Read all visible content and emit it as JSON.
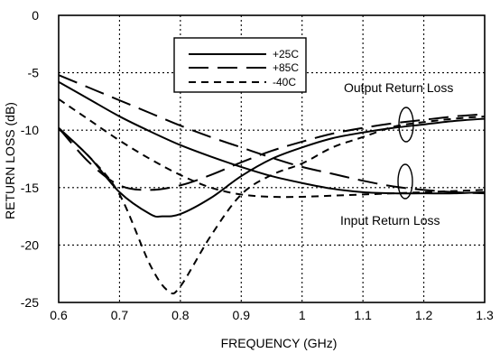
{
  "chart_data": {
    "type": "line",
    "title": "",
    "xlabel": "FREQUENCY (GHz)",
    "ylabel": "RETURN LOSS (dB)",
    "xlim": [
      0.6,
      1.3
    ],
    "ylim": [
      -25,
      0
    ],
    "x_ticks": [
      0.6,
      0.7,
      0.8,
      0.9,
      1,
      1.1,
      1.2,
      1.3
    ],
    "x_tick_labels": [
      "0.6",
      "0.7",
      "0.8",
      "0.9",
      "1",
      "1.1",
      "1.2",
      "1.3"
    ],
    "y_ticks": [
      0,
      -5,
      -10,
      -15,
      -20,
      -25
    ],
    "y_tick_labels": [
      "0",
      "-5",
      "-10",
      "-15",
      "-20",
      "-25"
    ],
    "grid": true,
    "legend_position": "top-center",
    "legend": [
      {
        "label": "+25C",
        "style": "solid"
      },
      {
        "label": "+85C",
        "style": "long-dash"
      },
      {
        "label": "-40C",
        "style": "short-dash"
      }
    ],
    "annotations": [
      "Output Return Loss",
      "Input Return Loss"
    ],
    "series": [
      {
        "name": "+25C",
        "group": "Output Return Loss",
        "style": "solid",
        "x": [
          0.6,
          0.65,
          0.7,
          0.75,
          0.8,
          0.85,
          0.9,
          0.95,
          1.0,
          1.05,
          1.1,
          1.15,
          1.2,
          1.25,
          1.3
        ],
        "y": [
          -5.8,
          -7.3,
          -8.8,
          -10.1,
          -11.3,
          -12.3,
          -13.2,
          -14.0,
          -14.6,
          -15.1,
          -15.4,
          -15.5,
          -15.5,
          -15.5,
          -15.4
        ]
      },
      {
        "name": "+85C",
        "group": "Output Return Loss",
        "style": "long-dash",
        "x": [
          0.6,
          0.65,
          0.7,
          0.75,
          0.8,
          0.85,
          0.9,
          0.95,
          1.0,
          1.05,
          1.1,
          1.15,
          1.2,
          1.25,
          1.3
        ],
        "y": [
          -5.2,
          -6.3,
          -7.4,
          -8.5,
          -9.6,
          -10.6,
          -11.5,
          -12.4,
          -13.2,
          -13.8,
          -14.4,
          -14.9,
          -15.2,
          -15.4,
          -15.5
        ]
      },
      {
        "name": "-40C",
        "group": "Output Return Loss",
        "style": "short-dash",
        "x": [
          0.6,
          0.65,
          0.7,
          0.75,
          0.8,
          0.85,
          0.9,
          0.95,
          1.0,
          1.05,
          1.1,
          1.15,
          1.2,
          1.25,
          1.3
        ],
        "y": [
          -7.3,
          -9.1,
          -10.9,
          -12.5,
          -13.9,
          -15.0,
          -15.6,
          -15.8,
          -15.8,
          -15.7,
          -15.6,
          -15.5,
          -15.4,
          -15.3,
          -15.2
        ]
      },
      {
        "name": "+25C",
        "group": "Input Return Loss",
        "style": "solid",
        "x": [
          0.6,
          0.65,
          0.7,
          0.75,
          0.77,
          0.8,
          0.85,
          0.9,
          0.95,
          1.0,
          1.05,
          1.1,
          1.15,
          1.2,
          1.25,
          1.3
        ],
        "y": [
          -9.8,
          -12.3,
          -15.4,
          -17.3,
          -17.5,
          -17.3,
          -15.9,
          -14.0,
          -12.5,
          -11.5,
          -10.7,
          -10.2,
          -9.8,
          -9.5,
          -9.2,
          -9.0
        ]
      },
      {
        "name": "+85C",
        "group": "Input Return Loss",
        "style": "long-dash",
        "x": [
          0.6,
          0.65,
          0.7,
          0.75,
          0.8,
          0.85,
          0.9,
          0.95,
          1.0,
          1.05,
          1.1,
          1.15,
          1.2,
          1.25,
          1.3
        ],
        "y": [
          -9.8,
          -12.8,
          -14.8,
          -15.2,
          -14.8,
          -13.9,
          -12.8,
          -11.8,
          -11.0,
          -10.3,
          -9.8,
          -9.4,
          -9.1,
          -8.8,
          -8.6
        ]
      },
      {
        "name": "-40C",
        "group": "Input Return Loss",
        "style": "short-dash",
        "x": [
          0.6,
          0.65,
          0.7,
          0.75,
          0.78,
          0.8,
          0.85,
          0.9,
          0.95,
          1.0,
          1.05,
          1.1,
          1.15,
          1.2,
          1.25,
          1.3
        ],
        "y": [
          -9.9,
          -12.3,
          -15.6,
          -21.7,
          -24.0,
          -23.6,
          -19.2,
          -15.6,
          -13.9,
          -12.9,
          -11.5,
          -10.6,
          -9.7,
          -9.3,
          -9.0,
          -8.8
        ]
      }
    ]
  }
}
